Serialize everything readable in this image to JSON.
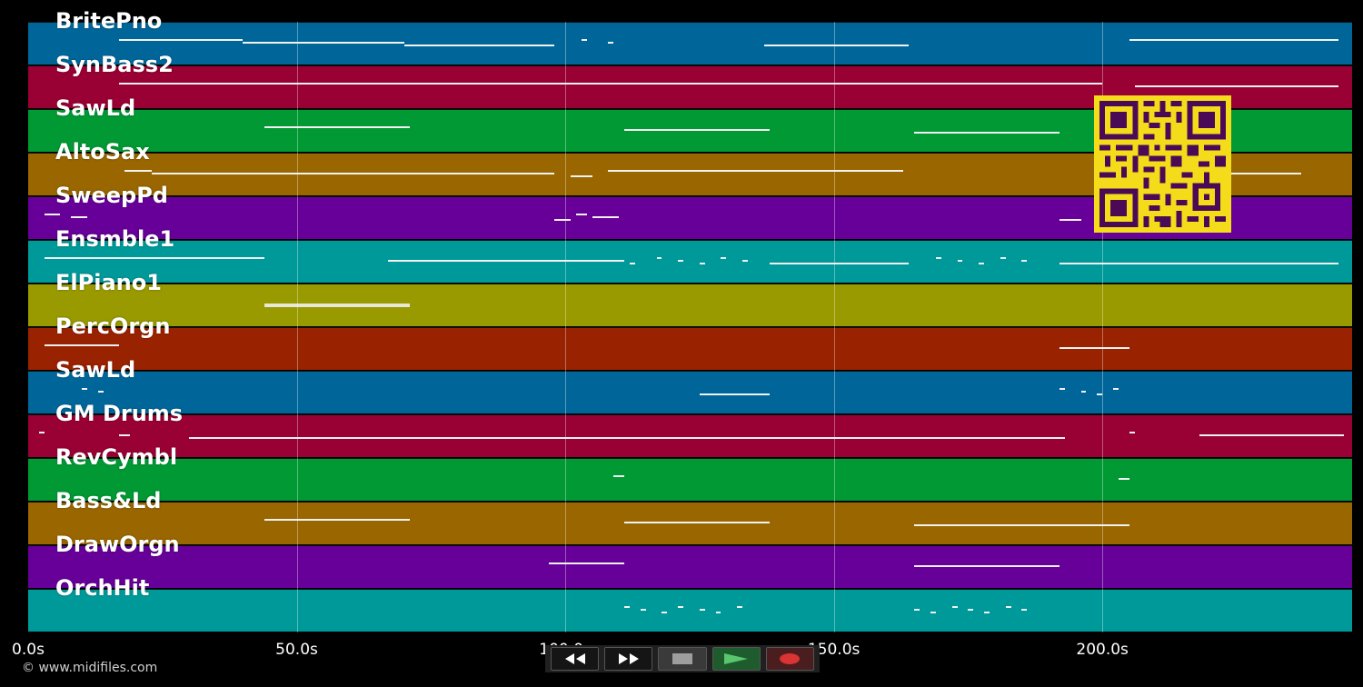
{
  "tracks": [
    {
      "name": "BritePno",
      "color": "#006699"
    },
    {
      "name": "SynBass2",
      "color": "#990033"
    },
    {
      "name": "SawLd",
      "color": "#009933"
    },
    {
      "name": "AltoSax",
      "color": "#996600"
    },
    {
      "name": "SweepPd",
      "color": "#660099"
    },
    {
      "name": "Ensmble1",
      "color": "#009999"
    },
    {
      "name": "ElPiano1",
      "color": "#999900"
    },
    {
      "name": "PercOrgn",
      "color": "#992200"
    },
    {
      "name": "SawLd",
      "color": "#006699"
    },
    {
      "name": "GM Drums",
      "color": "#990033"
    },
    {
      "name": "RevCymbl",
      "color": "#009933"
    },
    {
      "name": "Bass&Ld",
      "color": "#996600"
    },
    {
      "name": "DrawOrgn",
      "color": "#660099"
    },
    {
      "name": "OrchHit",
      "color": "#009999"
    }
  ],
  "time_axis": {
    "ticks": [
      "0.0s",
      "50.0s",
      "100.0s",
      "150.0s",
      "200.0s"
    ],
    "tick_values_s": [
      0,
      50,
      100,
      150,
      200
    ],
    "max_s": 246.5
  },
  "notes": [
    [
      [
        17,
        40
      ],
      [
        40,
        70
      ],
      [
        70,
        98
      ],
      [
        103,
        104
      ],
      [
        108,
        109
      ],
      [
        137,
        164
      ],
      [
        205,
        244
      ]
    ],
    [
      [
        17,
        200
      ],
      [
        206,
        244
      ]
    ],
    [
      [
        44,
        71
      ],
      [
        111,
        138
      ],
      [
        165,
        192
      ]
    ],
    [
      [
        18,
        23
      ],
      [
        23,
        98
      ],
      [
        101,
        105
      ],
      [
        108,
        163
      ],
      [
        205,
        237
      ]
    ],
    [
      [
        3,
        6
      ],
      [
        8,
        11
      ],
      [
        98,
        101
      ],
      [
        102,
        104
      ],
      [
        105,
        110
      ],
      [
        192,
        196
      ]
    ],
    [
      [
        3,
        44
      ],
      [
        67,
        111
      ],
      [
        112,
        113
      ],
      [
        117,
        118
      ],
      [
        121,
        122
      ],
      [
        125,
        126
      ],
      [
        129,
        130
      ],
      [
        133,
        134
      ],
      [
        138,
        164
      ],
      [
        169,
        170
      ],
      [
        173,
        174
      ],
      [
        177,
        178
      ],
      [
        181,
        182
      ],
      [
        185,
        186
      ],
      [
        192,
        244
      ]
    ],
    [
      [
        44,
        71
      ]
    ],
    [
      [
        3,
        17
      ],
      [
        192,
        205
      ]
    ],
    [
      [
        10,
        11
      ],
      [
        13,
        14
      ],
      [
        125,
        138
      ],
      [
        192,
        193
      ],
      [
        196,
        197
      ],
      [
        199,
        200
      ],
      [
        202,
        203
      ]
    ],
    [
      [
        2,
        3
      ],
      [
        17,
        19
      ],
      [
        30,
        193
      ],
      [
        205,
        206
      ],
      [
        218,
        245
      ]
    ],
    [
      [
        109,
        111
      ],
      [
        203,
        205
      ]
    ],
    [
      [
        44,
        71
      ],
      [
        111,
        138
      ],
      [
        165,
        205
      ]
    ],
    [
      [
        97,
        111
      ],
      [
        165,
        192
      ]
    ],
    [
      [
        111,
        112
      ],
      [
        114,
        115
      ],
      [
        118,
        119
      ],
      [
        121,
        122
      ],
      [
        125,
        126
      ],
      [
        128,
        129
      ],
      [
        132,
        133
      ],
      [
        165,
        166
      ],
      [
        168,
        169
      ],
      [
        172,
        173
      ],
      [
        175,
        176
      ],
      [
        178,
        179
      ],
      [
        182,
        183
      ],
      [
        185,
        186
      ]
    ]
  ],
  "transport": {
    "buttons": [
      {
        "name": "rewind-button",
        "icon": "rewind-icon"
      },
      {
        "name": "fast-forward-button",
        "icon": "fast-forward-icon"
      },
      {
        "name": "stop-button",
        "icon": "stop-icon"
      },
      {
        "name": "play-button",
        "icon": "play-icon"
      },
      {
        "name": "record-button",
        "icon": "record-icon"
      }
    ],
    "colors": {
      "rewind": "#ffffff",
      "stop": "#9e9e9e",
      "play": "#2fa35a",
      "record": "#d93333"
    }
  },
  "copyright": "© www.midifiles.com"
}
